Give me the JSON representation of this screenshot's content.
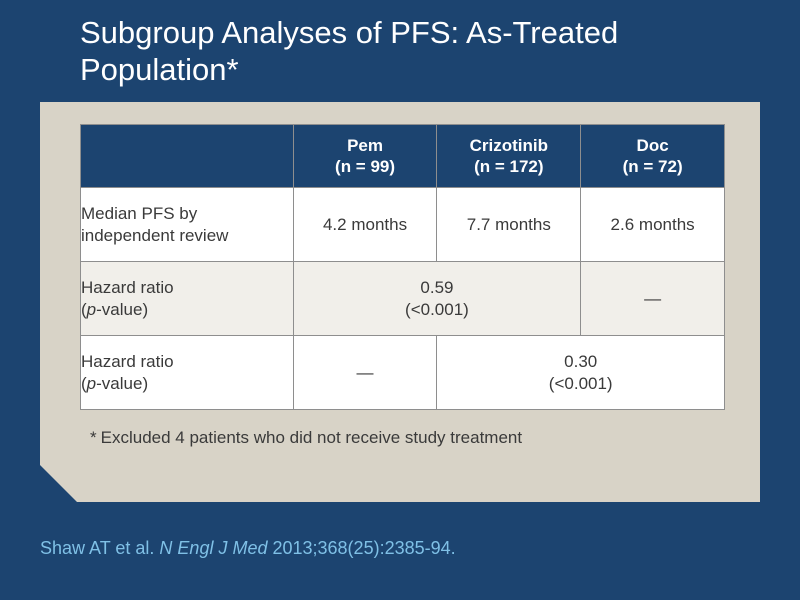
{
  "title_line1": "Subgroup Analyses of PFS: As-Treated",
  "title_line2": "Population*",
  "table": {
    "headers": [
      {
        "line1": "",
        "line2": ""
      },
      {
        "line1": "Pem",
        "line2": "(n = 99)"
      },
      {
        "line1": "Crizotinib",
        "line2": "(n = 172)"
      },
      {
        "line1": "Doc",
        "line2": "(n = 72)"
      }
    ],
    "rows": [
      {
        "label_line1": "Median PFS by",
        "label_line2": "independent review",
        "cells": [
          "4.2 months",
          "7.7 months",
          "2.6 months"
        ]
      },
      {
        "label_line1": "Hazard ratio",
        "label_line2_prefix": "(",
        "label_line2_italic": "p",
        "label_line2_suffix": "-value)",
        "merged_value_line1": "0.59",
        "merged_value_line2": "(<0.001)",
        "single_value": "—"
      },
      {
        "label_line1": "Hazard ratio",
        "label_line2_prefix": "(",
        "label_line2_italic": "p",
        "label_line2_suffix": "-value)",
        "single_value": "—",
        "merged_value_line1": "0.30",
        "merged_value_line2": "(<0.001)"
      }
    ]
  },
  "footnote_mark": "*",
  "footnote_text": "Excluded 4 patients who did not receive study treatment",
  "citation": {
    "authors": "Shaw AT et al.",
    "journal": "N Engl J Med",
    "details": "2013;368(25):2385-94."
  },
  "colors": {
    "background": "#1c4470",
    "panel": "#d8d3c7",
    "header_fill": "#1c4470",
    "citation_text": "#7fc0e6"
  }
}
